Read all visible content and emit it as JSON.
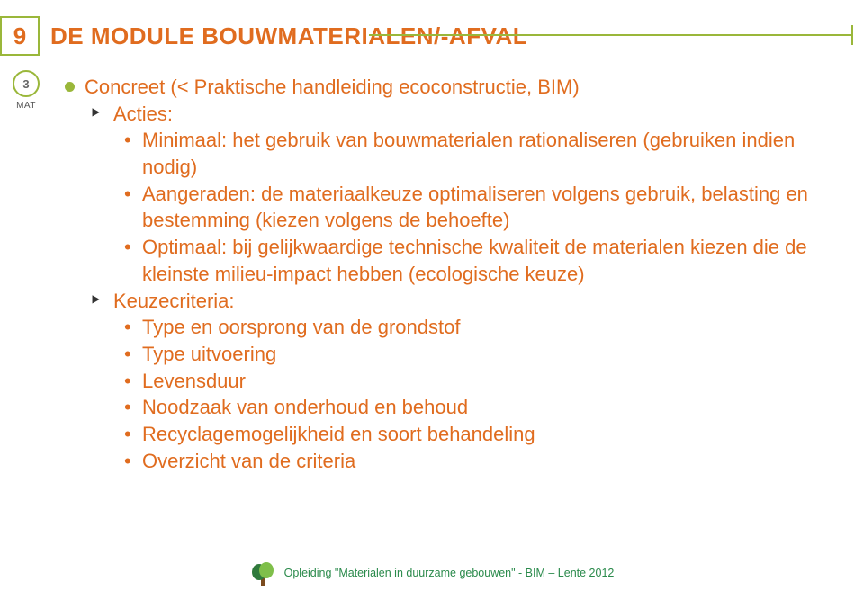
{
  "title": {
    "number": "9",
    "text": "DE MODULE BOUWMATERIALEN/-AFVAL",
    "number_color": "#e06c1f",
    "number_border": "#9ab73a",
    "text_color": "#e06c1f",
    "rule_color": "#9ab73a"
  },
  "mat_badge": {
    "inner": "3",
    "label": "MAT",
    "border_color": "#9ab73a"
  },
  "content": {
    "text_color": "#e06c1f",
    "bullet_fill": "#9ab73a",
    "lvl1": "Concreet (< Praktische handleiding ecoconstructie, BIM)",
    "actions_label": "Acties:",
    "actions": [
      "Minimaal: het gebruik van bouwmaterialen rationaliseren (gebruiken indien nodig)",
      "Aangeraden: de materiaalkeuze optimaliseren volgens gebruik, belasting en bestemming (kiezen volgens de behoefte)",
      "Optimaal: bij gelijkwaardige technische kwaliteit de materialen kiezen die de kleinste milieu-impact hebben (ecologische keuze)"
    ],
    "criteria_label": "Keuzecriteria:",
    "criteria": [
      "Type en oorsprong van de grondstof",
      "Type uitvoering",
      "Levensduur",
      "Noodzaak van onderhoud en behoud",
      "Recyclagemogelijkheid en soort behandeling",
      "Overzicht van de criteria"
    ]
  },
  "footer": {
    "text": "Opleiding \"Materialen in duurzame gebouwen\" - BIM – Lente 2012",
    "color": "#2a8a4b",
    "tree_trunk": "#7b4b1e",
    "tree_leaf_dark": "#2f7a3c",
    "tree_leaf_light": "#7fbf4a"
  }
}
